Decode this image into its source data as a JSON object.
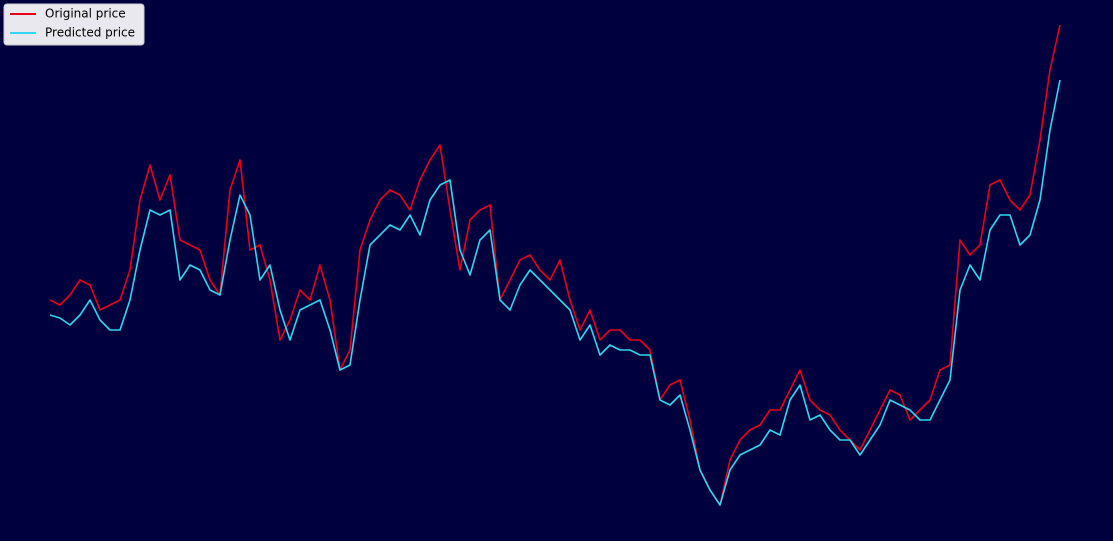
{
  "chart_data": {
    "type": "line",
    "ylim": [
      0,
      541
    ],
    "legend": "upper left",
    "background": "#00003f",
    "series": [
      {
        "name": "Original price",
        "color": "#e8001a",
        "values": [
          241,
          236,
          246,
          261,
          256,
          231,
          236,
          241,
          271,
          341,
          376,
          341,
          366,
          301,
          296,
          291,
          261,
          246,
          351,
          381,
          291,
          296,
          261,
          201,
          221,
          251,
          241,
          276,
          241,
          171,
          191,
          291,
          321,
          341,
          351,
          346,
          331,
          361,
          381,
          396,
          331,
          271,
          321,
          331,
          336,
          241,
          261,
          281,
          286,
          271,
          261,
          281,
          241,
          211,
          231,
          201,
          211,
          211,
          201,
          201,
          191,
          141,
          156,
          161,
          121,
          71,
          51,
          36,
          81,
          101,
          111,
          116,
          131,
          131,
          151,
          171,
          141,
          131,
          126,
          111,
          101,
          91,
          111,
          131,
          151,
          146,
          121,
          131,
          141,
          171,
          176,
          301,
          286,
          296,
          356,
          361,
          341,
          331,
          346,
          401,
          471,
          516
        ]
      },
      {
        "name": "Predicted price",
        "color": "#33d6ee",
        "values": [
          226,
          223,
          216,
          226,
          241,
          221,
          211,
          211,
          241,
          291,
          331,
          326,
          331,
          261,
          276,
          271,
          251,
          246,
          301,
          346,
          326,
          261,
          276,
          231,
          201,
          231,
          236,
          241,
          211,
          171,
          176,
          241,
          296,
          306,
          316,
          311,
          326,
          306,
          341,
          356,
          361,
          291,
          266,
          301,
          311,
          241,
          231,
          256,
          271,
          261,
          251,
          241,
          231,
          201,
          216,
          186,
          196,
          191,
          191,
          186,
          186,
          141,
          136,
          146,
          111,
          71,
          51,
          36,
          71,
          86,
          91,
          96,
          111,
          106,
          141,
          156,
          121,
          126,
          111,
          101,
          101,
          86,
          101,
          116,
          141,
          136,
          131,
          121,
          121,
          141,
          161,
          251,
          276,
          261,
          311,
          326,
          326,
          296,
          306,
          341,
          411,
          461
        ]
      }
    ]
  }
}
